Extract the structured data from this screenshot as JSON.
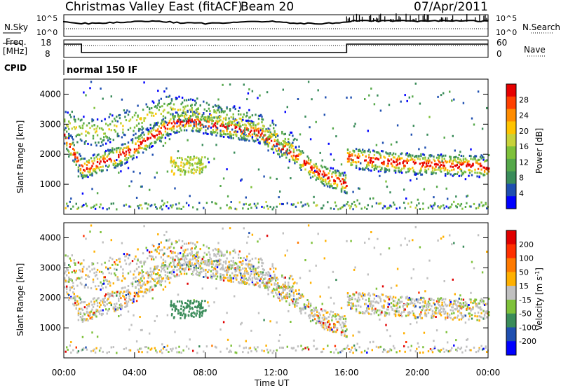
{
  "header": {
    "title": "Christmas Valley East (fitACF)",
    "beam": "Beam 20",
    "date": "07/Apr/2011"
  },
  "labels": {
    "nsky": "N.Sky",
    "nsearch": "N.Search",
    "freq_line1": "Freq.",
    "freq_line2": "[MHz]",
    "nave": "Nave",
    "cpid": "CPID",
    "cpid_value": "normal 150 IF"
  },
  "noise_axis": {
    "left_ticks": [
      "10^5",
      "10^0"
    ],
    "right_ticks": [
      "10^5",
      "10^0"
    ]
  },
  "freq_axis": {
    "left_ticks": [
      "18",
      "8"
    ],
    "right_ticks": [
      "60",
      "0"
    ]
  },
  "colors": {
    "power": [
      "#0000ff",
      "#1f4fb0",
      "#3a8c5a",
      "#55a84a",
      "#7ec13a",
      "#c8d23a",
      "#ffc400",
      "#ff8c00",
      "#ff4000",
      "#e60000"
    ],
    "velocity": [
      "#0000ff",
      "#1f4fb0",
      "#3a8c5a",
      "#7ec13a",
      "#c0c0c0",
      "#ffb000",
      "#ff7a00",
      "#ff3000",
      "#e00000"
    ]
  },
  "chart_data": [
    {
      "type": "heatmap",
      "name": "power",
      "xlabel": "",
      "ylabel": "Slant Range [km]",
      "xlim": [
        0,
        24
      ],
      "ylim": [
        0,
        4500
      ],
      "y_ticks": [
        1000,
        2000,
        3000,
        4000
      ],
      "colorbar_label": "Power [dB]",
      "colorbar_ticks": [
        "28",
        "24",
        "20",
        "16",
        "12",
        "8",
        "4"
      ],
      "bands": [
        {
          "x": [
            0,
            1,
            2,
            3,
            4,
            5,
            6,
            7,
            8,
            9,
            10,
            11,
            12,
            13,
            14,
            15,
            16
          ],
          "y": [
            2600,
            1500,
            1700,
            1900,
            2200,
            2600,
            3000,
            3100,
            3000,
            2900,
            2800,
            2700,
            2300,
            2000,
            1500,
            1200,
            1000
          ],
          "strong": true
        },
        {
          "x": [
            0,
            1,
            2,
            3,
            4,
            5,
            6,
            7,
            8,
            9,
            10,
            11,
            12,
            13
          ],
          "y": [
            3000,
            2800,
            2700,
            2900,
            3100,
            3300,
            3500,
            3400,
            3300,
            3200,
            3100,
            2900,
            2600,
            2200
          ],
          "strong": false
        },
        {
          "x": [
            16,
            17,
            18,
            19,
            20,
            21,
            22,
            23,
            24
          ],
          "y": [
            1900,
            1800,
            1750,
            1700,
            1650,
            1650,
            1600,
            1600,
            1550
          ],
          "strong": true
        }
      ]
    },
    {
      "type": "heatmap",
      "name": "velocity",
      "xlabel": "Time UT",
      "ylabel": "Slant Range [km]",
      "xlim": [
        0,
        24
      ],
      "ylim": [
        0,
        4500
      ],
      "x_ticks": [
        "00:00",
        "04:00",
        "08:00",
        "12:00",
        "16:00",
        "20:00",
        "00:00"
      ],
      "y_ticks": [
        1000,
        2000,
        3000,
        4000
      ],
      "colorbar_label": "Velocity [m s^-1]",
      "colorbar_ticks": [
        "200",
        "100",
        "50",
        "15",
        "-15",
        "-50",
        "-100",
        "-200"
      ]
    }
  ]
}
